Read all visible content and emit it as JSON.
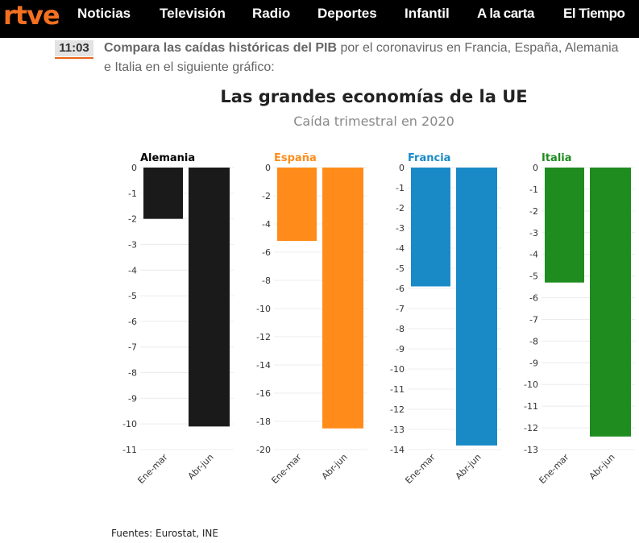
{
  "nav": {
    "logo": "rtve",
    "items": [
      "Noticias",
      "Televisión",
      "Radio",
      "Deportes",
      "Infantil",
      "A la carta",
      "El Tiempo"
    ]
  },
  "post": {
    "time": "11:03",
    "headline_bold": "Compara las caídas históricas del PIB",
    "headline_rest": " por el coronavirus en Francia, España, Alemania e Italia en el siguiente gráfico:"
  },
  "chart_data": {
    "type": "bar",
    "title": "Las grandes economías de la UE",
    "subtitle": "Caída trimestral en 2020",
    "source": "Fuentes: Eurostat, INE",
    "categories": [
      "Ene-mar",
      "Abr-jun"
    ],
    "panels": [
      {
        "name": "Alemania",
        "color": "#1a1a1a",
        "title_color": "#000000",
        "ylim": [
          -11,
          0
        ],
        "ticks": [
          0,
          -1,
          -2,
          -3,
          -4,
          -5,
          -6,
          -7,
          -8,
          -9,
          -10,
          -11
        ],
        "values": [
          -2.0,
          -10.1
        ]
      },
      {
        "name": "España",
        "color": "#ff8c1a",
        "title_color": "#ff8c1a",
        "ylim": [
          -20,
          0
        ],
        "ticks": [
          0,
          -2,
          -4,
          -6,
          -8,
          -10,
          -12,
          -14,
          -16,
          -18,
          -20
        ],
        "values": [
          -5.2,
          -18.5
        ]
      },
      {
        "name": "Francia",
        "color": "#1a8ac7",
        "title_color": "#1a8ac7",
        "ylim": [
          -14,
          0
        ],
        "ticks": [
          0,
          -1,
          -2,
          -3,
          -4,
          -5,
          -6,
          -7,
          -8,
          -9,
          -10,
          -11,
          -12,
          -13,
          -14
        ],
        "values": [
          -5.9,
          -13.8
        ]
      },
      {
        "name": "Italia",
        "color": "#1f8c1f",
        "title_color": "#1f8c1f",
        "ylim": [
          -13,
          0
        ],
        "ticks": [
          0,
          -1,
          -2,
          -3,
          -4,
          -5,
          -6,
          -7,
          -8,
          -9,
          -10,
          -11,
          -12,
          -13
        ],
        "values": [
          -5.3,
          -12.4
        ]
      }
    ]
  }
}
